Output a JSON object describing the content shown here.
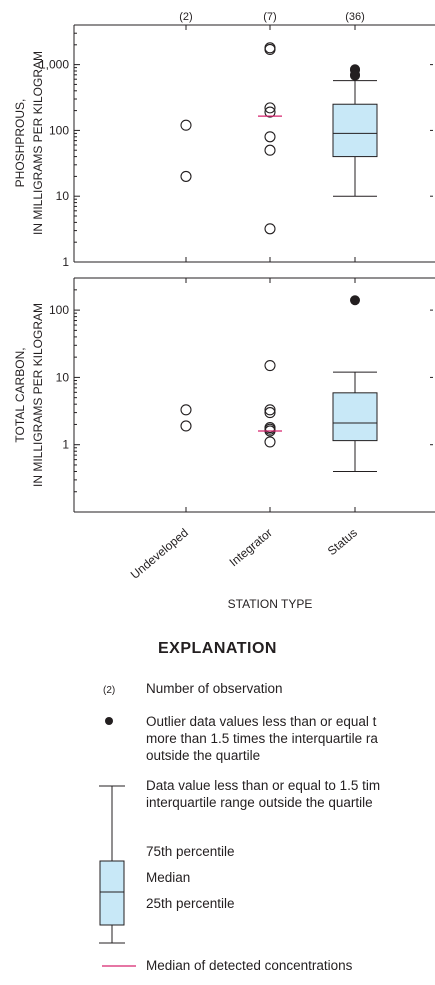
{
  "chart_data": [
    {
      "type": "boxplot",
      "ylabel": [
        "PHOSHPROUS,",
        "IN MILLIGRAMS PER KILOGRAM"
      ],
      "yscale": "log",
      "ylim": [
        1,
        4000
      ],
      "yticks": [
        1,
        10,
        100,
        1000
      ],
      "ytick_labels": [
        "1",
        "10",
        "100",
        "1,000"
      ],
      "categories": [
        "Undeveloped",
        "Integrator",
        "Status"
      ],
      "counts": [
        "(2)",
        "(7)",
        "(36)"
      ],
      "points": [
        {
          "category": "Undeveloped",
          "values": [
            120,
            20
          ]
        },
        {
          "category": "Integrator",
          "values": [
            1800,
            1700,
            220,
            190,
            80,
            50,
            3.2
          ]
        }
      ],
      "median_of_detected": [
        {
          "category": "Integrator",
          "value": 165
        }
      ],
      "boxes": [
        {
          "category": "Status",
          "whisker_low": 10,
          "q1": 40,
          "median": 90,
          "q3": 250,
          "whisker_high": 570,
          "outliers": [
            850,
            820,
            700,
            680
          ]
        }
      ]
    },
    {
      "type": "boxplot",
      "ylabel": [
        "TOTAL CARBON,",
        "IN MILLIGRAMS PER KILOGRAM"
      ],
      "yscale": "log",
      "ylim": [
        0.1,
        300
      ],
      "yticks": [
        1,
        10,
        100
      ],
      "ytick_labels": [
        "1",
        "10",
        "100"
      ],
      "categories": [
        "Undeveloped",
        "Integrator",
        "Status"
      ],
      "xlabel": "STATION TYPE",
      "points": [
        {
          "category": "Undeveloped",
          "values": [
            3.3,
            1.9
          ]
        },
        {
          "category": "Integrator",
          "values": [
            15,
            3.3,
            3.0,
            1.8,
            1.7,
            1.6,
            1.1
          ]
        }
      ],
      "median_of_detected": [
        {
          "category": "Integrator",
          "value": 1.6
        }
      ],
      "boxes": [
        {
          "category": "Status",
          "whisker_low": 0.4,
          "q1": 1.15,
          "median": 2.1,
          "q3": 5.9,
          "whisker_high": 12,
          "outliers": [
            140
          ]
        }
      ]
    }
  ],
  "legend": {
    "title": "EXPLANATION",
    "count_example": "(2)",
    "count_text": "Number of observation",
    "outlier_text": "Outlier data values less than or equal t\nmore than 1.5 times the interquartile ra\noutside the quartile",
    "whisker_text": "Data value less than or equal to 1.5 tim\ninterquartile range outside the quartile",
    "p75_text": "75th percentile",
    "median_text": "Median",
    "p25_text": "25th percentile",
    "detected_text": "Median of detected concentrations"
  },
  "colors": {
    "box_fill": "#c8e8f7",
    "median_detected": "#d6246e",
    "ink": "#231f20"
  }
}
